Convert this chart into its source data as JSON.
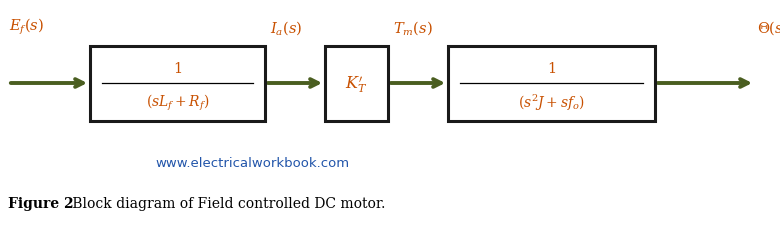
{
  "bg_color": "#ffffff",
  "arrow_color": "#4a5e20",
  "box_color": "#1a1a1a",
  "box_fill": "#ffffff",
  "text_color": "#000000",
  "math_color": "#c85000",
  "website_color": "#2255aa",
  "website_text": "www.electricalworkbook.com",
  "caption_bold": "Figure 2",
  "caption_normal": " Block diagram of Field controlled DC motor.",
  "input_label": "$E_f(s)$",
  "mid1_label": "$I_a(s)$",
  "mid2_label": "$T_m(s)$",
  "output_label": "$\\Theta(s)$",
  "box1_num": "$1$",
  "box1_den": "$(sL_f+R_f)$",
  "box2_content": "$K_T^{\\prime}$",
  "box3_num": "$1$",
  "box3_den": "$(s^2J+sf_o)$",
  "figsize": [
    7.8,
    2.26
  ],
  "dpi": 100,
  "xlim": [
    0,
    7.8
  ],
  "ylim": [
    0,
    2.26
  ]
}
